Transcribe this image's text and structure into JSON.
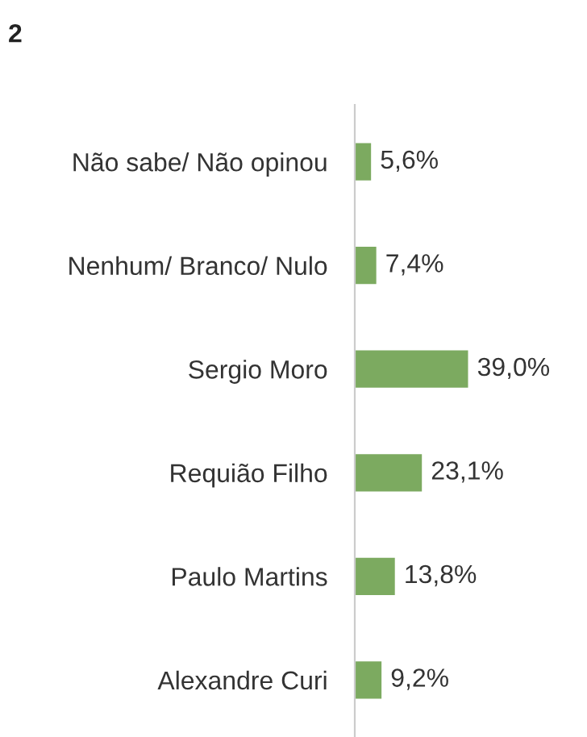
{
  "chart_data": {
    "type": "bar",
    "orientation": "horizontal",
    "title": "2",
    "categories": [
      "Não sabe/ Não opinou",
      "Nenhum/ Branco/ Nulo",
      "Sergio Moro",
      "Requião Filho",
      "Paulo Martins",
      "Alexandre Curi"
    ],
    "values": [
      5.6,
      7.4,
      39.0,
      23.1,
      13.8,
      9.2
    ],
    "value_labels": [
      "5,6%",
      "7,4%",
      "39,0%",
      "23,1%",
      "13,8%",
      "9,2%"
    ],
    "color": "#7caa60",
    "grid": false,
    "legend": false
  }
}
